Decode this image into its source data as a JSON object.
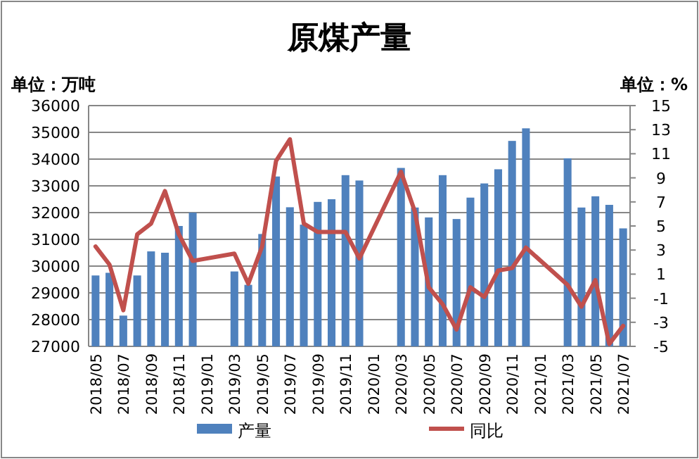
{
  "chart_data": {
    "type": "bar",
    "title": "原煤产量",
    "ylabel": "单位：万吨",
    "y2label": "单位：%",
    "categories": [
      "2018/05",
      null,
      "2018/07",
      null,
      "2018/09",
      null,
      "2018/11",
      null,
      "2019/01",
      null,
      "2019/03",
      null,
      "2019/05",
      null,
      "2019/07",
      null,
      "2019/09",
      null,
      "2019/11",
      null,
      "2020/01",
      null,
      "2020/03",
      null,
      "2020/05",
      null,
      "2020/07",
      null,
      "2020/09",
      null,
      "2020/11",
      null,
      "2021/01",
      null,
      "2021/03",
      null,
      "2021/05",
      null,
      "2021/07"
    ],
    "series": [
      {
        "name": "产量",
        "color": "#4f81bd",
        "values": [
          29650,
          29750,
          28150,
          29650,
          30550,
          30500,
          31500,
          32000,
          null,
          null,
          29800,
          29300,
          31200,
          33350,
          32200,
          31550,
          32400,
          32500,
          33400,
          33200,
          null,
          null,
          33670,
          32190,
          31820,
          33400,
          31760,
          32560,
          33090,
          33620,
          34680,
          35150,
          null,
          null,
          34030,
          32190,
          32610,
          32290,
          31410
        ]
      },
      {
        "name": "同比",
        "type": "line",
        "axis": "y2",
        "color": "#c0504d",
        "values": [
          3.3,
          1.8,
          -2.0,
          4.3,
          5.2,
          7.9,
          4.3,
          2.1,
          null,
          null,
          2.7,
          0.2,
          3.3,
          10.4,
          12.2,
          5.2,
          4.5,
          4.5,
          4.5,
          2.3,
          null,
          null,
          9.5,
          6.2,
          -0.1,
          -1.5,
          -3.6,
          -0.1,
          -0.9,
          1.3,
          1.5,
          3.2,
          null,
          null,
          0.1,
          -1.7,
          0.5,
          -4.8,
          -3.3
        ]
      }
    ],
    "ylim": [
      27000,
      36000
    ],
    "yticks": [
      27000,
      28000,
      29000,
      30000,
      31000,
      32000,
      33000,
      34000,
      35000,
      36000
    ],
    "y2lim": [
      -5,
      15
    ],
    "y2ticks": [
      -5,
      -3,
      -1,
      1,
      3,
      5,
      7,
      9,
      11,
      13,
      15
    ],
    "grid": "y",
    "legend": "bottom"
  }
}
